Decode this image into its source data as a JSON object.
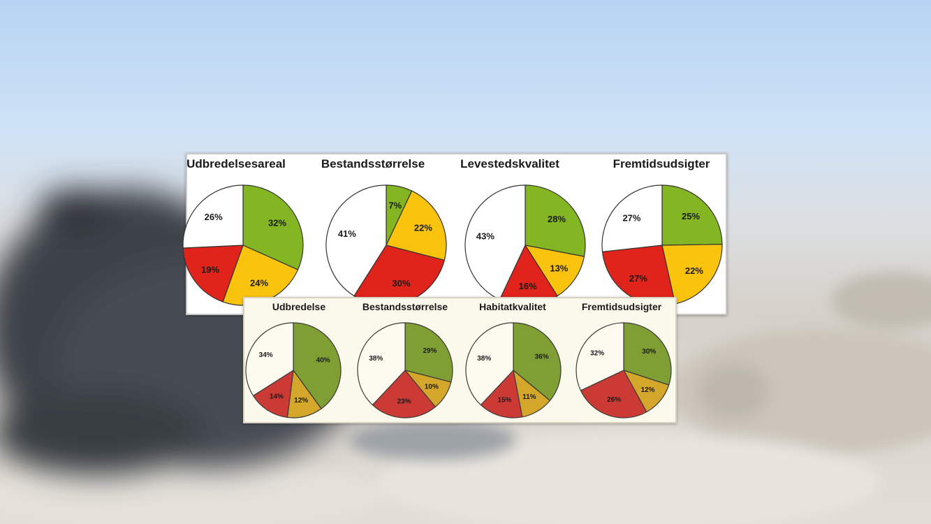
{
  "colors": {
    "sky_top": "#b9d6f6",
    "sky_mid": "#cfe1f5",
    "sand": "#d9d4cc",
    "seal": "#3c4148"
  },
  "chart_data": [
    {
      "group": "top",
      "type": "pie",
      "title": "Udbredelsesareal",
      "slices": [
        {
          "label": "32%",
          "value": 32,
          "color": "#84b623"
        },
        {
          "label": "24%",
          "value": 24,
          "color": "#fac30d"
        },
        {
          "label": "19%",
          "value": 19,
          "color": "#e0231b"
        },
        {
          "label": "26%",
          "value": 26,
          "color": "#ffffff"
        }
      ]
    },
    {
      "group": "top",
      "type": "pie",
      "title": "Bestandsstørrelse",
      "slices": [
        {
          "label": "7%",
          "value": 7,
          "color": "#84b623"
        },
        {
          "label": "22%",
          "value": 22,
          "color": "#fac30d"
        },
        {
          "label": "30%",
          "value": 30,
          "color": "#e0231b"
        },
        {
          "label": "41%",
          "value": 41,
          "color": "#ffffff"
        }
      ]
    },
    {
      "group": "top",
      "type": "pie",
      "title": "Levestedskvalitet",
      "slices": [
        {
          "label": "28%",
          "value": 28,
          "color": "#84b623"
        },
        {
          "label": "13%",
          "value": 13,
          "color": "#fac30d"
        },
        {
          "label": "16%",
          "value": 16,
          "color": "#e0231b"
        },
        {
          "label": "43%",
          "value": 43,
          "color": "#ffffff"
        }
      ]
    },
    {
      "group": "top",
      "type": "pie",
      "title": "Fremtidsudsigter",
      "slices": [
        {
          "label": "25%",
          "value": 25,
          "color": "#84b623"
        },
        {
          "label": "22%",
          "value": 22,
          "color": "#fac30d"
        },
        {
          "label": "27%",
          "value": 27,
          "color": "#e0231b"
        },
        {
          "label": "27%",
          "value": 27,
          "color": "#ffffff"
        }
      ]
    },
    {
      "group": "bottom",
      "type": "pie",
      "title": "Udbredelse",
      "slices": [
        {
          "label": "40%",
          "value": 40,
          "color": "#7f9e33"
        },
        {
          "label": "12%",
          "value": 12,
          "color": "#d4a62a"
        },
        {
          "label": "14%",
          "value": 14,
          "color": "#cc3a35"
        },
        {
          "label": "34%",
          "value": 34,
          "color": "#fdfbf0"
        }
      ]
    },
    {
      "group": "bottom",
      "type": "pie",
      "title": "Bestandsstørrelse",
      "slices": [
        {
          "label": "29%",
          "value": 29,
          "color": "#7f9e33"
        },
        {
          "label": "10%",
          "value": 10,
          "color": "#d4a62a"
        },
        {
          "label": "23%",
          "value": 23,
          "color": "#cc3a35"
        },
        {
          "label": "38%",
          "value": 38,
          "color": "#fdfbf0"
        }
      ]
    },
    {
      "group": "bottom",
      "type": "pie",
      "title": "Habitatkvalitet",
      "slices": [
        {
          "label": "36%",
          "value": 36,
          "color": "#7f9e33"
        },
        {
          "label": "11%",
          "value": 11,
          "color": "#d4a62a"
        },
        {
          "label": "15%",
          "value": 15,
          "color": "#cc3a35"
        },
        {
          "label": "38%",
          "value": 38,
          "color": "#fdfbf0"
        }
      ]
    },
    {
      "group": "bottom",
      "type": "pie",
      "title": "Fremtidsudsigter",
      "slices": [
        {
          "label": "30%",
          "value": 30,
          "color": "#7f9e33"
        },
        {
          "label": "12%",
          "value": 12,
          "color": "#d4a62a"
        },
        {
          "label": "26%",
          "value": 26,
          "color": "#cc3a35"
        },
        {
          "label": "32%",
          "value": 32,
          "color": "#fdfbf0"
        }
      ]
    }
  ]
}
